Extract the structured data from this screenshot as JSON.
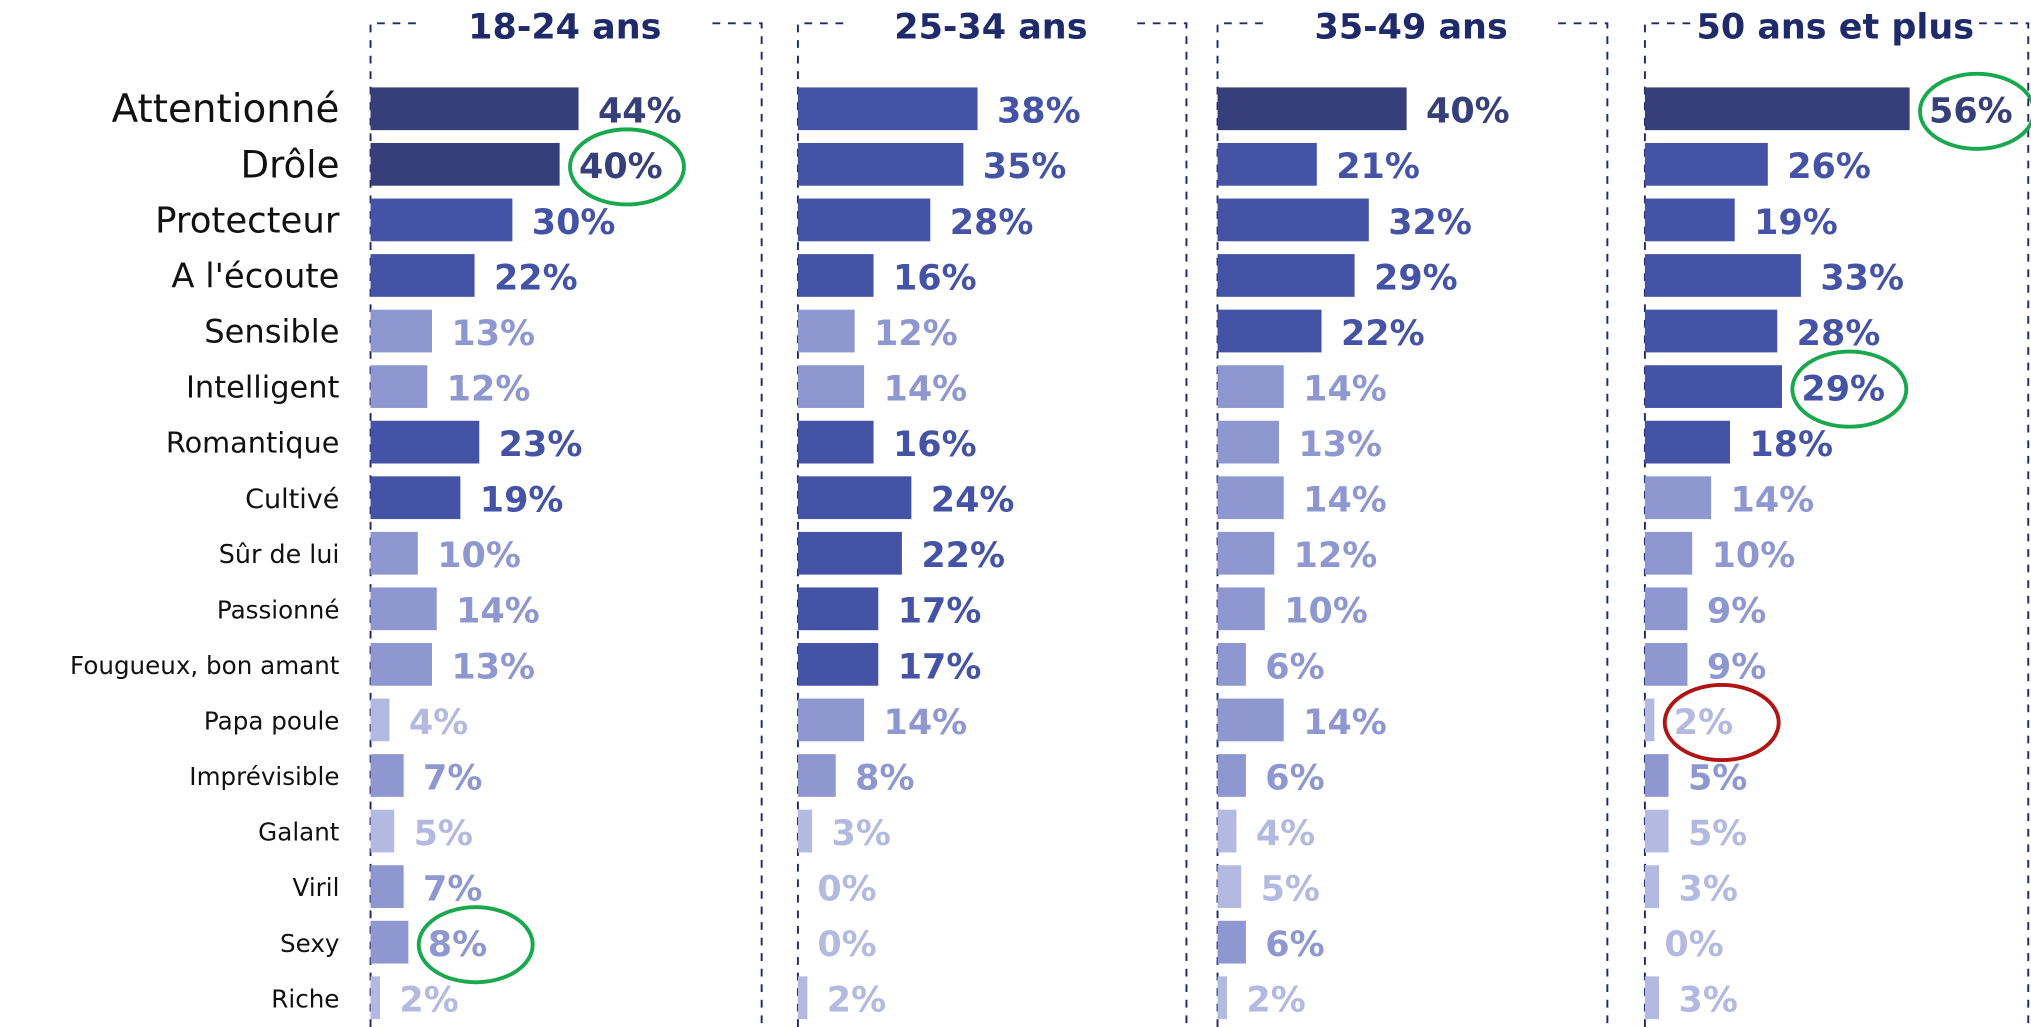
{
  "chart_data": {
    "type": "bar",
    "orientation": "horizontal",
    "categories": [
      "Attentionné",
      "Drôle",
      "Protecteur",
      "A l'écoute",
      "Sensible",
      "Intelligent",
      "Romantique",
      "Cultivé",
      "Sûr de lui",
      "Passionné",
      "Fougueux, bon amant",
      "Papa poule",
      "Imprévisible",
      "Galant",
      "Viril",
      "Sexy",
      "Riche"
    ],
    "series": [
      {
        "name": "18-24 ans",
        "values": [
          44,
          40,
          30,
          22,
          13,
          12,
          23,
          19,
          10,
          14,
          13,
          4,
          7,
          5,
          7,
          8,
          2
        ],
        "value_labels": [
          "44%",
          "40%",
          "30%",
          "22%",
          "13%",
          "12%",
          "23%",
          "19%",
          "10%",
          "14%",
          "13%",
          "4%",
          "7%",
          "5%",
          "7%",
          "8%",
          "2%"
        ],
        "colors": [
          "#363f7a",
          "#363f7a",
          "#4553a6",
          "#4553a6",
          "#8e97d0",
          "#8e97d0",
          "#4553a6",
          "#4553a6",
          "#8e97d0",
          "#8e97d0",
          "#8e97d0",
          "#b3b9e0",
          "#8e97d0",
          "#b3b9e0",
          "#8e97d0",
          "#8e97d0",
          "#b3b9e0"
        ],
        "circled": [
          {
            "index": 1,
            "color": "#1aa84f"
          },
          {
            "index": 15,
            "color": "#1aa84f"
          }
        ]
      },
      {
        "name": "25-34 ans",
        "values": [
          38,
          35,
          28,
          16,
          12,
          14,
          16,
          24,
          22,
          17,
          17,
          14,
          8,
          3,
          0,
          0,
          2
        ],
        "value_labels": [
          "38%",
          "35%",
          "28%",
          "16%",
          "12%",
          "14%",
          "16%",
          "24%",
          "22%",
          "17%",
          "17%",
          "14%",
          "8%",
          "3%",
          "0%",
          "0%",
          "2%"
        ],
        "colors": [
          "#4553a6",
          "#4553a6",
          "#4553a6",
          "#4553a6",
          "#8e97d0",
          "#8e97d0",
          "#4553a6",
          "#4553a6",
          "#4553a6",
          "#4553a6",
          "#4553a6",
          "#8e97d0",
          "#8e97d0",
          "#b3b9e0",
          "#b3b9e0",
          "#b3b9e0",
          "#b3b9e0"
        ],
        "circled": []
      },
      {
        "name": "35-49 ans",
        "values": [
          40,
          21,
          32,
          29,
          22,
          14,
          13,
          14,
          12,
          10,
          6,
          14,
          6,
          4,
          5,
          6,
          2
        ],
        "value_labels": [
          "40%",
          "21%",
          "32%",
          "29%",
          "22%",
          "14%",
          "13%",
          "14%",
          "12%",
          "10%",
          "6%",
          "14%",
          "6%",
          "4%",
          "5%",
          "6%",
          "2%"
        ],
        "colors": [
          "#363f7a",
          "#4553a6",
          "#4553a6",
          "#4553a6",
          "#4553a6",
          "#8e97d0",
          "#8e97d0",
          "#8e97d0",
          "#8e97d0",
          "#8e97d0",
          "#8e97d0",
          "#8e97d0",
          "#8e97d0",
          "#b3b9e0",
          "#b3b9e0",
          "#8e97d0",
          "#b3b9e0"
        ],
        "circled": []
      },
      {
        "name": "50 ans et plus",
        "values": [
          56,
          26,
          19,
          33,
          28,
          29,
          18,
          14,
          10,
          9,
          9,
          2,
          5,
          5,
          3,
          0,
          3
        ],
        "value_labels": [
          "56%",
          "26%",
          "19%",
          "33%",
          "28%",
          "29%",
          "18%",
          "14%",
          "10%",
          "9%",
          "9%",
          "2%",
          "5%",
          "5%",
          "3%",
          "0%",
          "3%"
        ],
        "colors": [
          "#363f7a",
          "#4553a6",
          "#4553a6",
          "#4553a6",
          "#4553a6",
          "#4553a6",
          "#4553a6",
          "#8e97d0",
          "#8e97d0",
          "#8e97d0",
          "#8e97d0",
          "#b3b9e0",
          "#8e97d0",
          "#b3b9e0",
          "#b3b9e0",
          "#b3b9e0",
          "#b3b9e0"
        ],
        "circled": [
          {
            "index": 0,
            "color": "#1aa84f"
          },
          {
            "index": 5,
            "color": "#1aa84f"
          },
          {
            "index": 11,
            "color": "#b01515"
          }
        ]
      }
    ]
  }
}
